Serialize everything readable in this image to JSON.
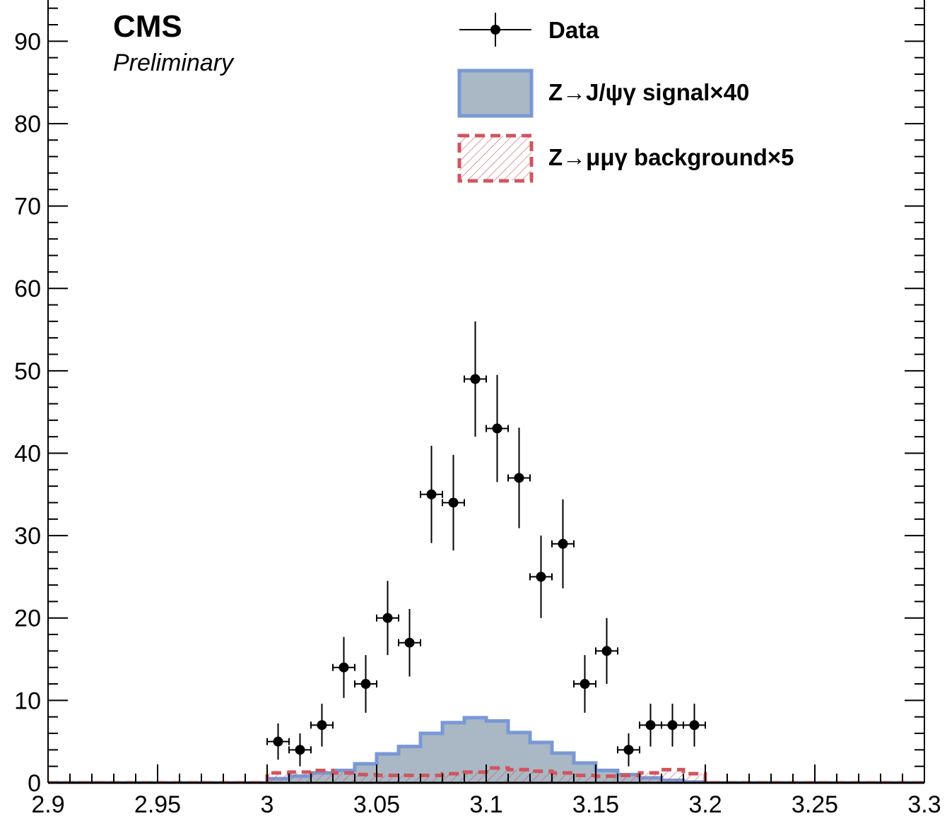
{
  "chart_data": {
    "type": "histogram",
    "experiment_label": "CMS",
    "status_label": "Preliminary",
    "xlim": [
      2.9,
      3.3
    ],
    "ylim": [
      0,
      95
    ],
    "x_ticks": [
      2.9,
      2.95,
      3,
      3.05,
      3.1,
      3.15,
      3.2,
      3.25,
      3.3
    ],
    "x_tick_labels": [
      "2.9",
      "2.95",
      "3",
      "3.05",
      "3.1",
      "3.15",
      "3.2",
      "3.25",
      "3.3"
    ],
    "y_ticks": [
      0,
      10,
      20,
      30,
      40,
      50,
      60,
      70,
      80,
      90
    ],
    "y_tick_labels": [
      "0",
      "10",
      "20",
      "30",
      "40",
      "50",
      "60",
      "70",
      "80",
      "90"
    ],
    "bin_width": 0.01,
    "legend": {
      "placement": "top-right",
      "entries": [
        {
          "key": "data",
          "label": "Data"
        },
        {
          "key": "signal",
          "label": "Z→J/ψγ signal×40"
        },
        {
          "key": "background",
          "label": "Z→μμγ background×5"
        }
      ]
    },
    "colors": {
      "signal_fill": "#a9b8c4",
      "signal_line": "#7a98d6",
      "background_line": "#d0555e",
      "data": "#000000"
    },
    "data_points": {
      "x": [
        3.005,
        3.015,
        3.025,
        3.035,
        3.045,
        3.055,
        3.065,
        3.075,
        3.085,
        3.095,
        3.105,
        3.115,
        3.125,
        3.135,
        3.145,
        3.155,
        3.165,
        3.175,
        3.185,
        3.195
      ],
      "y": [
        5,
        4,
        7,
        14,
        12,
        20,
        17,
        35,
        34,
        49,
        43,
        37,
        25,
        29,
        12,
        16,
        4,
        7,
        7,
        7
      ],
      "yerr_up": [
        2.2,
        2.0,
        2.6,
        3.7,
        3.5,
        4.5,
        4.1,
        5.9,
        5.8,
        7.0,
        6.5,
        6.1,
        5.0,
        5.4,
        3.5,
        4.0,
        2.0,
        2.6,
        2.6,
        2.6
      ],
      "yerr_down": [
        2.2,
        2.0,
        2.6,
        3.7,
        3.5,
        4.5,
        4.1,
        5.9,
        5.8,
        7.0,
        6.5,
        6.1,
        5.0,
        5.4,
        3.5,
        4.0,
        2.0,
        2.6,
        2.6,
        2.6
      ]
    },
    "signal": {
      "bin_edges_start": 3.0,
      "values": [
        0.5,
        0.8,
        1.2,
        1.5,
        2.3,
        3.5,
        4.4,
        6.0,
        7.3,
        7.9,
        7.5,
        6.1,
        4.9,
        3.6,
        2.4,
        1.5,
        1.0,
        0.6,
        0.3,
        0.1
      ]
    },
    "background": {
      "bin_edges_start": 3.0,
      "values": [
        1.2,
        1.3,
        1.5,
        1.2,
        1.0,
        0.9,
        0.9,
        0.9,
        1.1,
        1.3,
        1.8,
        1.6,
        1.4,
        1.2,
        0.9,
        0.8,
        0.9,
        1.2,
        1.6,
        1.1
      ]
    }
  }
}
